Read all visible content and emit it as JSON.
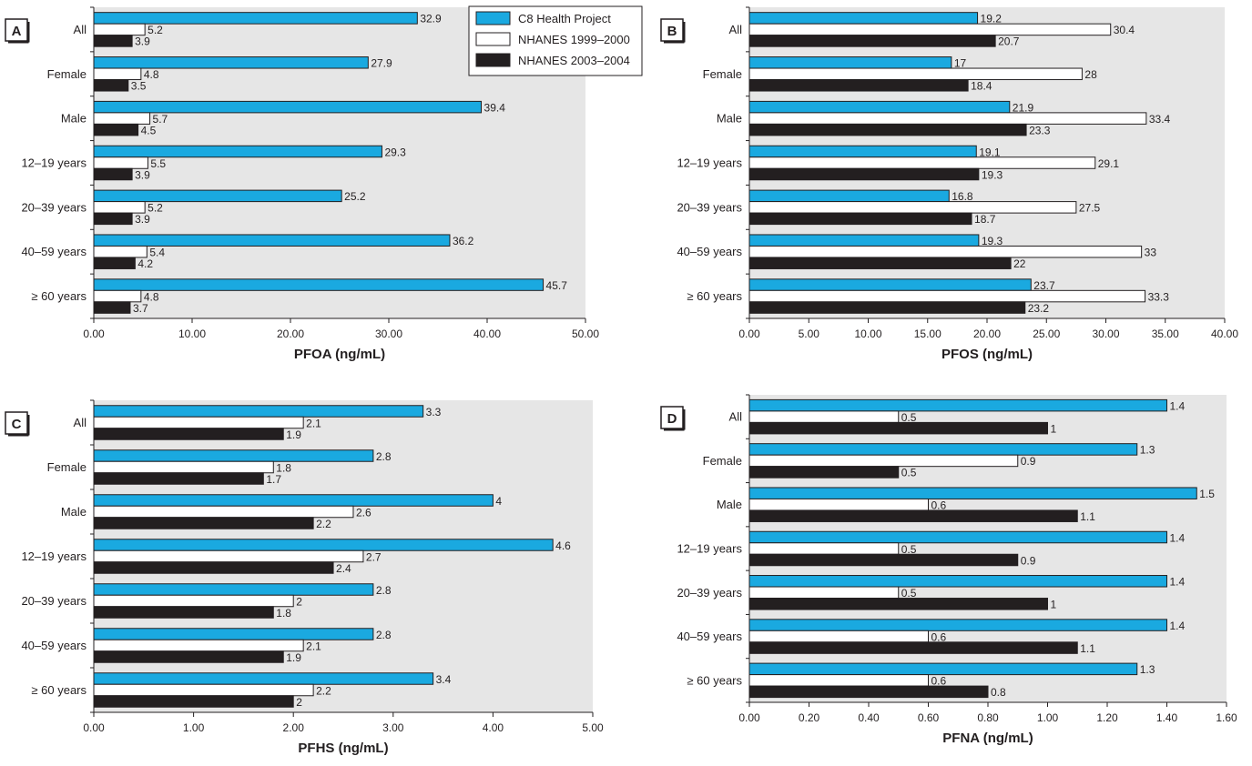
{
  "legend": {
    "items": [
      {
        "label": "C8 Health Project",
        "color": "#1aa9e0"
      },
      {
        "label": "NHANES 1999–2000",
        "color": "#ffffff"
      },
      {
        "label": "NHANES 2003–2004",
        "color": "#231f20"
      }
    ]
  },
  "colors": {
    "plot_bg": "#e6e6e6",
    "c8": "#1aa9e0",
    "nhanes_1999": "#ffffff",
    "nhanes_2003": "#231f20"
  },
  "chart_data": [
    {
      "panel": "A",
      "type": "bar",
      "orientation": "horizontal",
      "xlabel": "PFOA (ng/mL)",
      "xlim": [
        0,
        50
      ],
      "xticks": [
        "0.00",
        "10.00",
        "20.00",
        "30.00",
        "40.00",
        "50.00"
      ],
      "categories": [
        "All",
        "Female",
        "Male",
        "12–19 years",
        "20–39 years",
        "40–59 years",
        "≥ 60 years"
      ],
      "series": [
        {
          "name": "C8 Health Project",
          "values": [
            32.9,
            27.9,
            39.4,
            29.3,
            25.2,
            36.2,
            45.7
          ],
          "labels": [
            "32.9",
            "27.9",
            "39.4",
            "29.3",
            "25.2",
            "36.2",
            "45.7"
          ]
        },
        {
          "name": "NHANES 1999–2000",
          "values": [
            5.2,
            4.8,
            5.7,
            5.5,
            5.2,
            5.4,
            4.8
          ],
          "labels": [
            "5.2",
            "4.8",
            "5.7",
            "5.5",
            "5.2",
            "5.4",
            "4.8"
          ]
        },
        {
          "name": "NHANES 2003–2004",
          "values": [
            3.9,
            3.5,
            4.5,
            3.9,
            3.9,
            4.2,
            3.7
          ],
          "labels": [
            "3.9",
            "3.5",
            "4.5",
            "3.9",
            "3.9",
            "4.2",
            "3.7"
          ]
        }
      ],
      "legend": "top-right"
    },
    {
      "panel": "B",
      "type": "bar",
      "orientation": "horizontal",
      "xlabel": "PFOS (ng/mL)",
      "xlim": [
        0,
        40
      ],
      "xticks": [
        "0.00",
        "5.00",
        "10.00",
        "15.00",
        "20.00",
        "25.00",
        "30.00",
        "35.00",
        "40.00"
      ],
      "categories": [
        "All",
        "Female",
        "Male",
        "12–19 years",
        "20–39 years",
        "40–59 years",
        "≥ 60 years"
      ],
      "series": [
        {
          "name": "C8 Health Project",
          "values": [
            19.2,
            17,
            21.9,
            19.1,
            16.8,
            19.3,
            23.7
          ],
          "labels": [
            "19.2",
            "17",
            "21.9",
            "19.1",
            "16.8",
            "19.3",
            "23.7"
          ]
        },
        {
          "name": "NHANES 1999–2000",
          "values": [
            30.4,
            28,
            33.4,
            29.1,
            27.5,
            33,
            33.3
          ],
          "labels": [
            "30.4",
            "28",
            "33.4",
            "29.1",
            "27.5",
            "33",
            "33.3"
          ]
        },
        {
          "name": "NHANES 2003–2004",
          "values": [
            20.7,
            18.4,
            23.3,
            19.3,
            18.7,
            22,
            23.2
          ],
          "labels": [
            "20.7",
            "18.4",
            "23.3",
            "19.3",
            "18.7",
            "22",
            "23.2"
          ]
        }
      ]
    },
    {
      "panel": "C",
      "type": "bar",
      "orientation": "horizontal",
      "xlabel": "PFHS (ng/mL)",
      "xlim": [
        0,
        5
      ],
      "xticks": [
        "0.00",
        "1.00",
        "2.00",
        "3.00",
        "4.00",
        "5.00"
      ],
      "categories": [
        "All",
        "Female",
        "Male",
        "12–19 years",
        "20–39 years",
        "40–59 years",
        "≥ 60 years"
      ],
      "series": [
        {
          "name": "C8 Health Project",
          "values": [
            3.3,
            2.8,
            4,
            4.6,
            2.8,
            2.8,
            3.4
          ],
          "labels": [
            "3.3",
            "2.8",
            "4",
            "4.6",
            "2.8",
            "2.8",
            "3.4"
          ]
        },
        {
          "name": "NHANES 1999–2000",
          "values": [
            2.1,
            1.8,
            2.6,
            2.7,
            2,
            2.1,
            2.2
          ],
          "labels": [
            "2.1",
            "1.8",
            "2.6",
            "2.7",
            "2",
            "2.1",
            "2.2"
          ]
        },
        {
          "name": "NHANES 2003–2004",
          "values": [
            1.9,
            1.7,
            2.2,
            2.4,
            1.8,
            1.9,
            2
          ],
          "labels": [
            "1.9",
            "1.7",
            "2.2",
            "2.4",
            "1.8",
            "1.9",
            "2"
          ]
        }
      ]
    },
    {
      "panel": "D",
      "type": "bar",
      "orientation": "horizontal",
      "xlabel": "PFNA (ng/mL)",
      "xlim": [
        0,
        1.6
      ],
      "xticks": [
        "0.00",
        "0.20",
        "0.40",
        "0.60",
        "0.80",
        "1.00",
        "1.20",
        "1.40",
        "1.60"
      ],
      "categories": [
        "All",
        "Female",
        "Male",
        "12–19 years",
        "20–39 years",
        "40–59 years",
        "≥ 60 years"
      ],
      "series": [
        {
          "name": "C8 Health Project",
          "values": [
            1.4,
            1.3,
            1.5,
            1.4,
            1.4,
            1.4,
            1.3
          ],
          "labels": [
            "1.4",
            "1.3",
            "1.5",
            "1.4",
            "1.4",
            "1.4",
            "1.3"
          ]
        },
        {
          "name": "NHANES 1999–2000",
          "values": [
            0.5,
            0.9,
            0.6,
            0.5,
            0.5,
            0.6,
            0.6
          ],
          "labels": [
            "0.5",
            "0.9",
            "0.6",
            "0.5",
            "0.5",
            "0.6",
            "0.6"
          ]
        },
        {
          "name": "NHANES 2003–2004",
          "values": [
            1,
            0.5,
            1.1,
            0.9,
            1,
            1.1,
            0.8
          ],
          "labels": [
            "1",
            "0.5",
            "1.1",
            "0.9",
            "1",
            "1.1",
            "0.8"
          ]
        }
      ]
    }
  ]
}
